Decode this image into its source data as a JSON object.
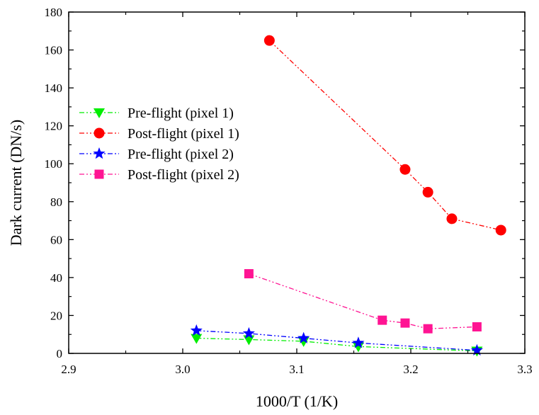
{
  "chart_data": {
    "type": "line",
    "xlabel": "1000/T (1/K)",
    "ylabel": "Dark current (DN/s)",
    "xlim": [
      2.9,
      3.3
    ],
    "ylim": [
      0,
      180
    ],
    "xticks": [
      2.9,
      3.0,
      3.1,
      3.2,
      3.3
    ],
    "yticks": [
      0,
      20,
      40,
      60,
      80,
      100,
      120,
      140,
      160,
      180
    ],
    "x_tick_labels": [
      "2.9",
      "3.0",
      "3.1",
      "3.2",
      "3.3"
    ],
    "y_tick_labels": [
      "0",
      "20",
      "40",
      "60",
      "80",
      "100",
      "120",
      "140",
      "160",
      "180"
    ],
    "grid": false,
    "legend_position": "left",
    "series": [
      {
        "name": "Pre-flight (pixel 1)",
        "color": "#00ee00",
        "marker": "triangle-down",
        "x": [
          3.012,
          3.058,
          3.106,
          3.154,
          3.258
        ],
        "y": [
          8.0,
          7.3,
          6.4,
          3.6,
          1.3
        ]
      },
      {
        "name": "Post-flight (pixel 1)",
        "color": "#ff0000",
        "marker": "circle",
        "x": [
          3.076,
          3.195,
          3.215,
          3.236,
          3.279
        ],
        "y": [
          165,
          97,
          85,
          71,
          65
        ]
      },
      {
        "name": "Pre-flight (pixel 2)",
        "color": "#0000ff",
        "marker": "star",
        "x": [
          3.012,
          3.058,
          3.106,
          3.154,
          3.258
        ],
        "y": [
          12.0,
          10.5,
          8.0,
          5.5,
          1.6
        ]
      },
      {
        "name": "Post-flight (pixel 2)",
        "color": "#ff1493",
        "marker": "square",
        "x": [
          3.058,
          3.175,
          3.195,
          3.215,
          3.258
        ],
        "y": [
          42.0,
          17.5,
          16.0,
          13.0,
          14.0
        ]
      }
    ]
  }
}
